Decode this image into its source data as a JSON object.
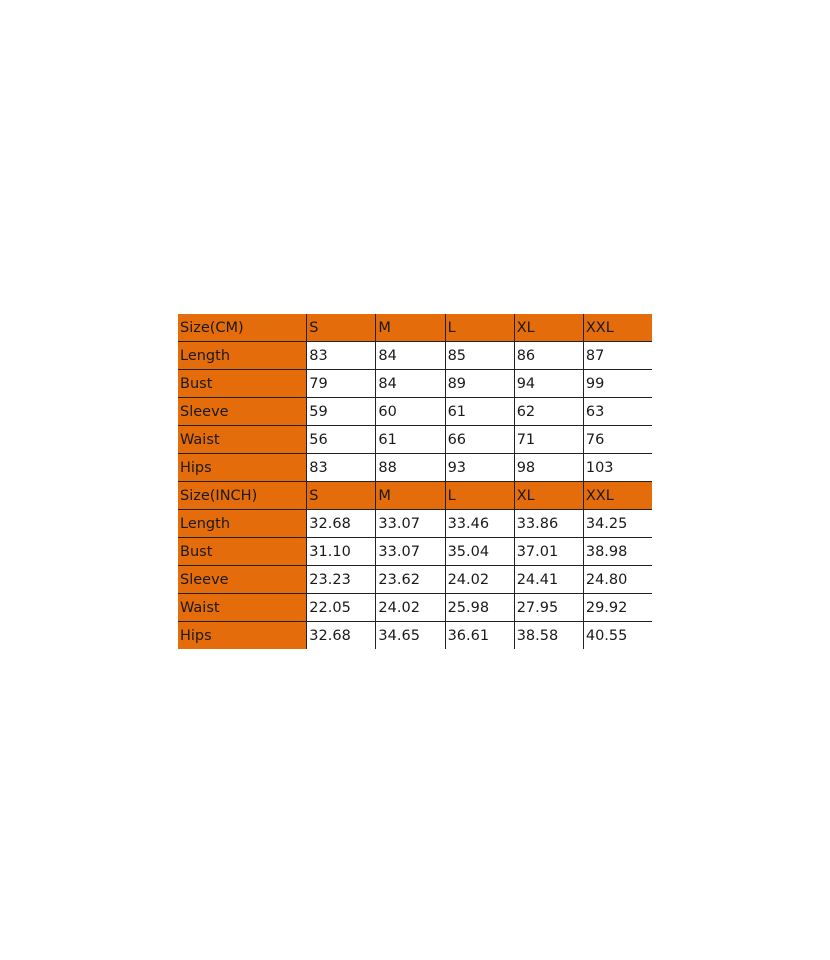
{
  "accent_color": "#e46c0a",
  "table": {
    "rows": [
      {
        "header": true,
        "cells": [
          "Size(CM)",
          "S",
          "M",
          "L",
          "XL",
          "XXL"
        ]
      },
      {
        "header": false,
        "cells": [
          "Length",
          "83",
          "84",
          "85",
          "86",
          "87"
        ]
      },
      {
        "header": false,
        "cells": [
          "Bust",
          "79",
          "84",
          "89",
          "94",
          "99"
        ]
      },
      {
        "header": false,
        "cells": [
          "Sleeve",
          "59",
          "60",
          "61",
          "62",
          "63"
        ]
      },
      {
        "header": false,
        "cells": [
          "Waist",
          "56",
          "61",
          "66",
          "71",
          "76"
        ]
      },
      {
        "header": false,
        "cells": [
          "Hips",
          "83",
          "88",
          "93",
          "98",
          "103"
        ]
      },
      {
        "header": true,
        "cells": [
          "Size(INCH)",
          "S",
          "M",
          "L",
          "XL",
          "XXL"
        ]
      },
      {
        "header": false,
        "cells": [
          "Length",
          "32.68",
          "33.07",
          "33.46",
          "33.86",
          "34.25"
        ]
      },
      {
        "header": false,
        "cells": [
          "Bust",
          "31.10",
          "33.07",
          "35.04",
          "37.01",
          "38.98"
        ]
      },
      {
        "header": false,
        "cells": [
          "Sleeve",
          "23.23",
          "23.62",
          "24.02",
          "24.41",
          "24.80"
        ]
      },
      {
        "header": false,
        "cells": [
          "Waist",
          "22.05",
          "24.02",
          "25.98",
          "27.95",
          "29.92"
        ]
      },
      {
        "header": false,
        "cells": [
          "Hips",
          "32.68",
          "34.65",
          "36.61",
          "38.58",
          "40.55"
        ]
      }
    ]
  }
}
